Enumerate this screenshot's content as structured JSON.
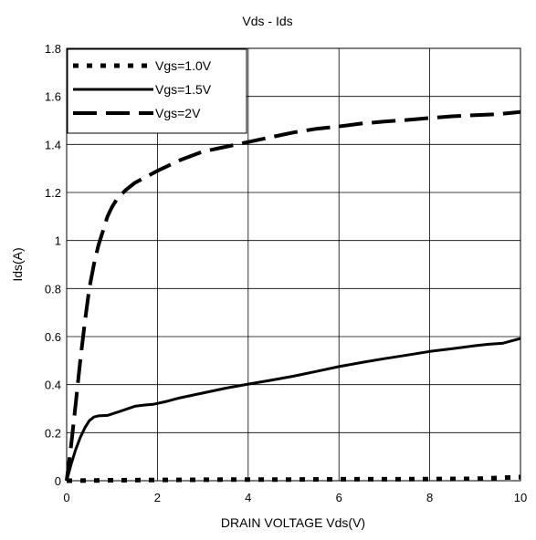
{
  "chart_data": {
    "type": "line",
    "title": "Vds - Ids",
    "xlabel": "DRAIN VOLTAGE Vds(V)",
    "ylabel": "Ids(A)",
    "xlim": [
      0,
      10
    ],
    "ylim": [
      0,
      1.8
    ],
    "xticks": [
      "0",
      "2",
      "4",
      "6",
      "8",
      "10"
    ],
    "yticks": [
      "0",
      "0.2",
      "0.4",
      "0.6",
      "0.8",
      "1",
      "1.2",
      "1.4",
      "1.6",
      "1.8"
    ],
    "grid": true,
    "legend_position": "top-left",
    "series": [
      {
        "name": "Vgs=1.0V",
        "style": "dotted",
        "x": [
          0,
          1,
          2,
          3,
          4,
          5,
          6,
          7,
          8,
          9,
          10
        ],
        "y": [
          0,
          0.002,
          0.003,
          0.004,
          0.005,
          0.005,
          0.006,
          0.006,
          0.007,
          0.008,
          0.015
        ]
      },
      {
        "name": "Vgs=1.5V",
        "style": "solid",
        "x": [
          0,
          0.1,
          0.2,
          0.3,
          0.4,
          0.5,
          0.6,
          0.7,
          0.9,
          1.2,
          1.5,
          1.7,
          1.9,
          2.2,
          2.5,
          3,
          3.5,
          4,
          4.5,
          5,
          5.5,
          6,
          6.5,
          7,
          7.5,
          8,
          8.5,
          9,
          9.3,
          9.6,
          10
        ],
        "y": [
          0,
          0.07,
          0.13,
          0.18,
          0.22,
          0.25,
          0.265,
          0.27,
          0.272,
          0.29,
          0.31,
          0.315,
          0.318,
          0.33,
          0.345,
          0.365,
          0.385,
          0.402,
          0.418,
          0.435,
          0.455,
          0.475,
          0.492,
          0.508,
          0.523,
          0.538,
          0.55,
          0.562,
          0.568,
          0.572,
          0.592
        ]
      },
      {
        "name": "Vgs=2V",
        "style": "dashed",
        "x": [
          0,
          0.1,
          0.2,
          0.3,
          0.4,
          0.5,
          0.6,
          0.7,
          0.8,
          0.9,
          1.0,
          1.1,
          1.3,
          1.5,
          1.8,
          2.0,
          2.5,
          3.0,
          3.5,
          4.0,
          4.5,
          5.0,
          5.5,
          6.0,
          6.5,
          7.0,
          7.5,
          8.0,
          8.5,
          9.0,
          9.5,
          10.0
        ],
        "y": [
          0,
          0.15,
          0.32,
          0.5,
          0.66,
          0.8,
          0.9,
          0.98,
          1.04,
          1.1,
          1.14,
          1.17,
          1.21,
          1.24,
          1.27,
          1.29,
          1.335,
          1.37,
          1.39,
          1.41,
          1.43,
          1.45,
          1.465,
          1.475,
          1.487,
          1.495,
          1.502,
          1.51,
          1.517,
          1.522,
          1.526,
          1.535
        ]
      }
    ]
  }
}
